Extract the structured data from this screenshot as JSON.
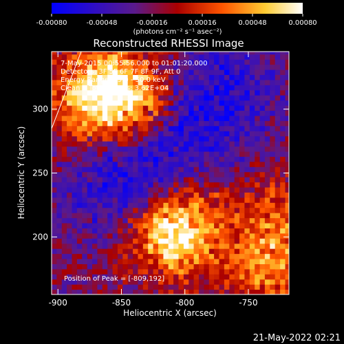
{
  "chart_data": {
    "type": "heatmap",
    "title": "Reconstructed RHESSI Image",
    "xlabel": "Heliocentric X (arcsec)",
    "ylabel": "Heliocentric Y (arcsec)",
    "xlim": [
      -905,
      -718
    ],
    "ylim": [
      155,
      345
    ],
    "x_ticks": [
      "-900",
      "-850",
      "-800",
      "-750"
    ],
    "x_tick_values": [
      -900,
      -850,
      -800,
      -750
    ],
    "y_ticks": [
      "200",
      "250",
      "300"
    ],
    "y_tick_values": [
      200,
      250,
      300
    ],
    "colorbar": {
      "min": -0.0008,
      "max": 0.0008,
      "tick_labels": [
        "-0.00080",
        "-0.00048",
        "-0.00016",
        "0.00016",
        "0.00048",
        "0.00080"
      ],
      "tick_values": [
        -0.0008,
        -0.00048,
        -0.00016,
        0.00016,
        0.00048,
        0.0008
      ],
      "unit_label": "(photons cm⁻² s⁻¹ asec⁻²)",
      "colors": [
        "#0000ff",
        "#5a1a8c",
        "#cc0000",
        "#ff6600",
        "#ffcc33",
        "#ffffff"
      ]
    },
    "annotations": {
      "time": "7-May-2015 00:55:56.000 to 01:01:20.000",
      "detectors": "Detectors: 3F 5F 6F 7F 8F 9F, Att 0",
      "energy": "Energy Range: 25.0 - 50.0 keV",
      "clean": "Clean    Total counts: 3.62E+04",
      "peak": "Position of Peak = [-809,192]"
    },
    "sources": [
      {
        "x": -845,
        "y": 305,
        "intensity": 0.0007
      },
      {
        "x": -865,
        "y": 320,
        "intensity": 0.0006
      },
      {
        "x": -880,
        "y": 300,
        "intensity": 0.0005
      },
      {
        "x": -815,
        "y": 198,
        "intensity": 0.0008
      },
      {
        "x": -795,
        "y": 210,
        "intensity": 0.0005
      },
      {
        "x": -730,
        "y": 215,
        "intensity": 0.0004
      },
      {
        "x": -728,
        "y": 180,
        "intensity": 0.0004
      },
      {
        "x": -745,
        "y": 165,
        "intensity": 0.0003
      }
    ],
    "negative_band": [
      {
        "x": -840,
        "y": 250,
        "intensity": -0.0004
      },
      {
        "x": -790,
        "y": 290,
        "intensity": -0.0004
      },
      {
        "x": -760,
        "y": 320,
        "intensity": -0.0003
      },
      {
        "x": -870,
        "y": 230,
        "intensity": -0.0002
      }
    ],
    "limb_label": "",
    "grid": false
  },
  "footer": {
    "date": "21-May-2022 02:21"
  }
}
